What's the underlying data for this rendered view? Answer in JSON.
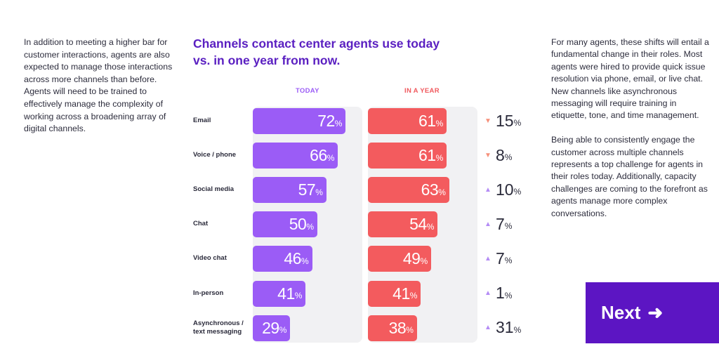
{
  "left_paragraph": "In addition to meeting a higher bar for customer interactions, agents are also expected to manage those interactions across more channels than before. Agents will need to be trained to effectively manage the complexity of working across a broadening array of digital channels.",
  "right_paragraphs": [
    "For many agents, these shifts will entail a fundamental change in their roles. Most agents were hired to provide quick issue resolution via phone, email, or live chat. New channels like asynchronous messaging will require training in etiquette, tone, and time management.",
    "Being able to consistently engage the customer across multiple channels represents a top challenge for agents in their roles today. Additionally, capacity challenges are coming to the forefront as agents manage more complex conversations."
  ],
  "next_button": {
    "label": "Next",
    "icon": "arrow-right-icon"
  },
  "colors": {
    "today": "#9b5cf6",
    "in_a_year": "#f35b5e",
    "accent": "#5c15c3",
    "track": "#f1f1f3"
  },
  "chart_data": {
    "type": "bar",
    "orientation": "horizontal",
    "title": "Channels contact center agents use today vs. in one year from now.",
    "unit": "%",
    "categories": [
      "Email",
      "Voice / phone",
      "Social media",
      "Chat",
      "Video chat",
      "In-person",
      "Asynchronous / text messaging"
    ],
    "series": [
      {
        "name": "TODAY",
        "values": [
          72,
          66,
          57,
          50,
          46,
          41,
          29
        ]
      },
      {
        "name": "IN A YEAR",
        "values": [
          61,
          61,
          63,
          54,
          49,
          41,
          38
        ]
      }
    ],
    "changes": [
      {
        "direction": "down",
        "value": 15
      },
      {
        "direction": "down",
        "value": 8
      },
      {
        "direction": "up",
        "value": 10
      },
      {
        "direction": "up",
        "value": 7
      },
      {
        "direction": "up",
        "value": 7
      },
      {
        "direction": "up",
        "value": 1
      },
      {
        "direction": "up",
        "value": 31
      }
    ],
    "xlim": [
      0,
      100
    ],
    "grid": false,
    "legend": "top"
  }
}
